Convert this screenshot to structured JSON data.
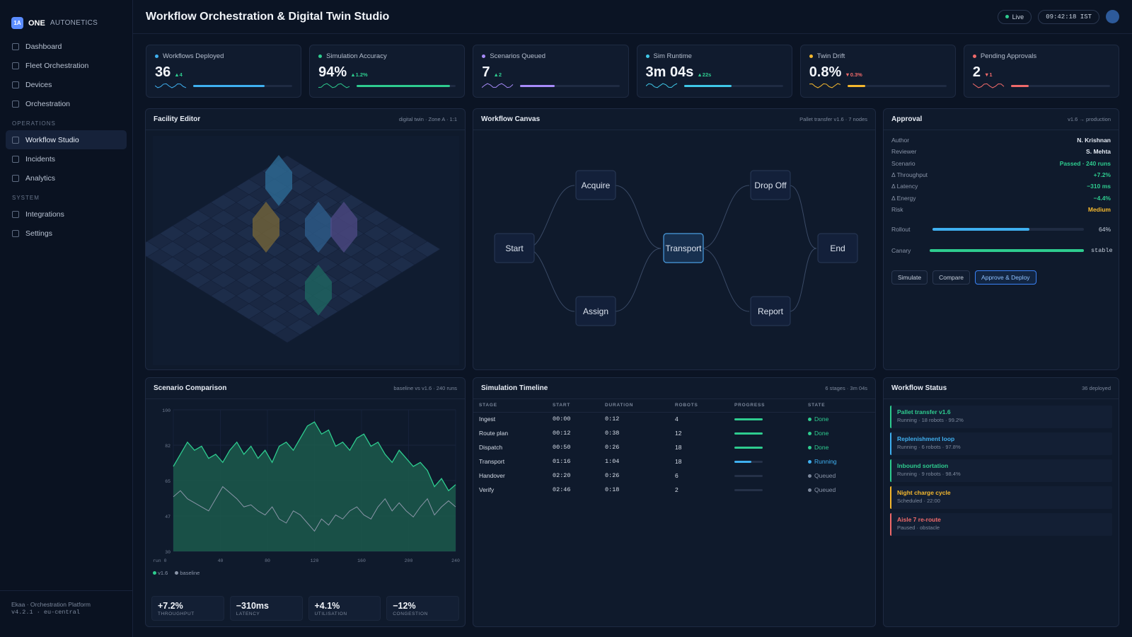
{
  "brand": {
    "badge": "1A",
    "name": "ONE",
    "sub": "AUTONETICS"
  },
  "nav": {
    "main": [
      "Dashboard",
      "Fleet Orchestration",
      "Devices",
      "Orchestration"
    ],
    "ops_title": "OPERATIONS",
    "ops": [
      "Workflow Studio",
      "Incidents",
      "Analytics"
    ],
    "sys_title": "SYSTEM",
    "sys": [
      "Integrations",
      "Settings"
    ]
  },
  "footer": {
    "line1": "Ekaa · Orchestration Platform",
    "line2": "v4.2.1 · eu-central"
  },
  "header": {
    "title": "Workflow Orchestration & Digital Twin Studio",
    "live": "Live",
    "clock": "09:42:18 IST"
  },
  "kpis": [
    {
      "label": "Workflows Deployed",
      "value": "36",
      "delta": "▲4",
      "color": "#3fb0f0",
      "delta_color": "#2ecc8f",
      "progress": 0.72
    },
    {
      "label": "Simulation Accuracy",
      "value": "94%",
      "delta": "▲1.2%",
      "color": "#2ecc8f",
      "delta_color": "#2ecc8f",
      "progress": 0.94
    },
    {
      "label": "Scenarios Queued",
      "value": "7",
      "delta": "▲2",
      "color": "#a78bfa",
      "delta_color": "#2ecc8f",
      "progress": 0.35
    },
    {
      "label": "Sim Runtime",
      "value": "3m 04s",
      "delta": "▲22s",
      "color": "#3fc8e8",
      "delta_color": "#2ecc8f",
      "progress": 0.48
    },
    {
      "label": "Twin Drift",
      "value": "0.8%",
      "delta": "▼0.3%",
      "color": "#f5b82e",
      "delta_color": "#f06a6a",
      "progress": 0.18
    },
    {
      "label": "Pending Approvals",
      "value": "2",
      "delta": "▼1",
      "color": "#f06a6a",
      "delta_color": "#f06a6a",
      "progress": 0.18
    }
  ],
  "facility": {
    "title": "Facility Editor",
    "meta": "digital twin · Zone A · 1:1"
  },
  "workflow": {
    "title": "Workflow Canvas",
    "meta": "Pallet transfer v1.6 · 7 nodes",
    "nodes": [
      "Start",
      "Acquire",
      "Assign",
      "Transport",
      "Drop Off",
      "Report",
      "End"
    ]
  },
  "approval": {
    "title": "Approval",
    "meta": "v1.6 → production",
    "rows": [
      {
        "k": "Author",
        "v": "N. Krishnan",
        "c": "#e4eaf3"
      },
      {
        "k": "Reviewer",
        "v": "S. Mehta",
        "c": "#e4eaf3"
      },
      {
        "k": "Scenario",
        "v": "Passed · 240 runs",
        "c": "#2ecc8f"
      },
      {
        "k": "Δ Throughput",
        "v": "+7.2%",
        "c": "#2ecc8f"
      },
      {
        "k": "Δ Latency",
        "v": "−310 ms",
        "c": "#2ecc8f"
      },
      {
        "k": "Δ Energy",
        "v": "−4.4%",
        "c": "#2ecc8f"
      },
      {
        "k": "Risk",
        "v": "Medium",
        "c": "#f5b82e"
      }
    ],
    "rollout_label": "Rollout",
    "rollout_value": "64%",
    "rollout": 0.64,
    "canary_label": "Canary",
    "canary_value": "stable",
    "canary": 1.0,
    "buttons": [
      "Simulate",
      "Compare",
      "Approve & Deploy"
    ]
  },
  "scenario": {
    "title": "Scenario Comparison",
    "meta": "baseline vs v1.6 · 240 runs",
    "legend": [
      "v1.6",
      "baseline"
    ],
    "stats": [
      {
        "v": "+7.2%",
        "l": "THROUGHPUT"
      },
      {
        "v": "−310ms",
        "l": "LATENCY"
      },
      {
        "v": "+4.1%",
        "l": "UTILISATION"
      },
      {
        "v": "−12%",
        "l": "CONGESTION"
      }
    ]
  },
  "chart_data": {
    "type": "area",
    "title": "Scenario Comparison",
    "x_ticks": [
      "run 0",
      "40",
      "80",
      "120",
      "160",
      "200",
      "240"
    ],
    "y_ticks": [
      "100",
      "82",
      "65",
      "47",
      "30"
    ],
    "ylim": [
      30,
      100
    ],
    "xlim": [
      0,
      240
    ],
    "x": [
      0,
      6,
      12,
      18,
      24,
      30,
      36,
      42,
      48,
      54,
      60,
      66,
      72,
      78,
      84,
      90,
      96,
      102,
      108,
      114,
      120,
      126,
      132,
      138,
      144,
      150,
      156,
      162,
      168,
      174,
      180,
      186,
      192,
      198,
      204,
      210,
      216,
      222,
      228,
      234,
      240
    ],
    "series": [
      {
        "name": "v1.6",
        "values": [
          72,
          78,
          84,
          80,
          82,
          76,
          78,
          74,
          80,
          84,
          78,
          82,
          76,
          80,
          74,
          82,
          84,
          80,
          86,
          92,
          94,
          88,
          90,
          82,
          84,
          80,
          86,
          88,
          82,
          84,
          78,
          74,
          80,
          76,
          72,
          74,
          70,
          62,
          66,
          60,
          63
        ]
      },
      {
        "name": "baseline",
        "values": [
          57,
          60,
          56,
          54,
          52,
          50,
          56,
          62,
          59,
          56,
          52,
          53,
          50,
          48,
          52,
          46,
          44,
          50,
          48,
          44,
          40,
          46,
          43,
          48,
          46,
          50,
          52,
          48,
          46,
          52,
          56,
          50,
          54,
          50,
          47,
          52,
          56,
          48,
          52,
          55,
          52
        ]
      }
    ],
    "grid": true,
    "legend_position": "bottom-left"
  },
  "timeline": {
    "title": "Simulation Timeline",
    "meta": "6 stages · 3m 04s",
    "headers": [
      "STAGE",
      "START",
      "DURATION",
      "ROBOTS",
      "PROGRESS",
      "STATE"
    ],
    "rows": [
      {
        "stage": "Ingest",
        "start": "00:00",
        "duration": "0:12",
        "robots": "4",
        "progress": 1.0,
        "state": "Done",
        "color": "#2ecc8f"
      },
      {
        "stage": "Route plan",
        "start": "00:12",
        "duration": "0:38",
        "robots": "12",
        "progress": 1.0,
        "state": "Done",
        "color": "#2ecc8f"
      },
      {
        "stage": "Dispatch",
        "start": "00:50",
        "duration": "0:26",
        "robots": "18",
        "progress": 1.0,
        "state": "Done",
        "color": "#2ecc8f"
      },
      {
        "stage": "Transport",
        "start": "01:16",
        "duration": "1:04",
        "robots": "18",
        "progress": 0.6,
        "state": "Running",
        "color": "#3fb0f0"
      },
      {
        "stage": "Handover",
        "start": "02:20",
        "duration": "0:26",
        "robots": "6",
        "progress": 0,
        "state": "Queued",
        "color": "#7c889c"
      },
      {
        "stage": "Verify",
        "start": "02:46",
        "duration": "0:18",
        "robots": "2",
        "progress": 0,
        "state": "Queued",
        "color": "#7c889c"
      }
    ]
  },
  "status": {
    "title": "Workflow Status",
    "meta": "36 deployed",
    "items": [
      {
        "name": "Pallet transfer v1.6",
        "sub": "Running · 18 robots · 99.2%",
        "color": "#2ecc8f"
      },
      {
        "name": "Replenishment loop",
        "sub": "Running · 6 robots · 97.8%",
        "color": "#3fb0f0"
      },
      {
        "name": "Inbound sortation",
        "sub": "Running · 9 robots · 98.4%",
        "color": "#2ecc8f"
      },
      {
        "name": "Night charge cycle",
        "sub": "Scheduled · 22:00",
        "color": "#f5b82e"
      },
      {
        "name": "Aisle 7 re-route",
        "sub": "Paused · obstacle",
        "color": "#f06a6a"
      }
    ]
  }
}
